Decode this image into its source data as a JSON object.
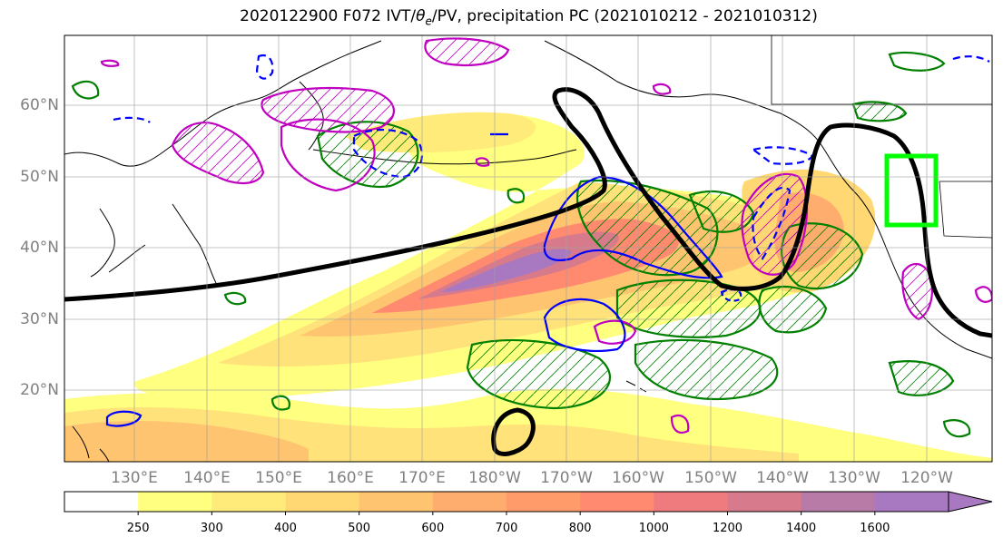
{
  "title": {
    "prefix": "2020122900 F072 IVT/",
    "theta": "θ",
    "theta_sub": "e",
    "suffix": "/PV, precipitation PC (2021010212 - 2021010312)"
  },
  "latitude_labels": [
    "60°N",
    "50°N",
    "40°N",
    "30°N",
    "20°N"
  ],
  "longitude_labels": [
    "130°E",
    "140°E",
    "150°E",
    "160°E",
    "170°E",
    "180°W",
    "170°W",
    "160°W",
    "150°W",
    "140°W",
    "130°W",
    "120°W"
  ],
  "colorbar": {
    "ticks": [
      "250",
      "300",
      "400",
      "500",
      "600",
      "700",
      "800",
      "1000",
      "1200",
      "1400",
      "1600"
    ],
    "colors": [
      "#ffffff",
      "#ffff80",
      "#ffeb7a",
      "#ffd873",
      "#ffc470",
      "#ffad6e",
      "#ff9a6a",
      "#ff8a70",
      "#ef7b7e",
      "#d77b8c",
      "#b87aa7",
      "#a879c0"
    ]
  },
  "colors": {
    "ivt_contour": "#000000",
    "theta_e": "#008000",
    "pv_positive": "#c000c0",
    "pv_negative": "#0000ff",
    "target_box": "#00ff00",
    "grid": "#a0a0a0",
    "coast": "#000000"
  }
}
